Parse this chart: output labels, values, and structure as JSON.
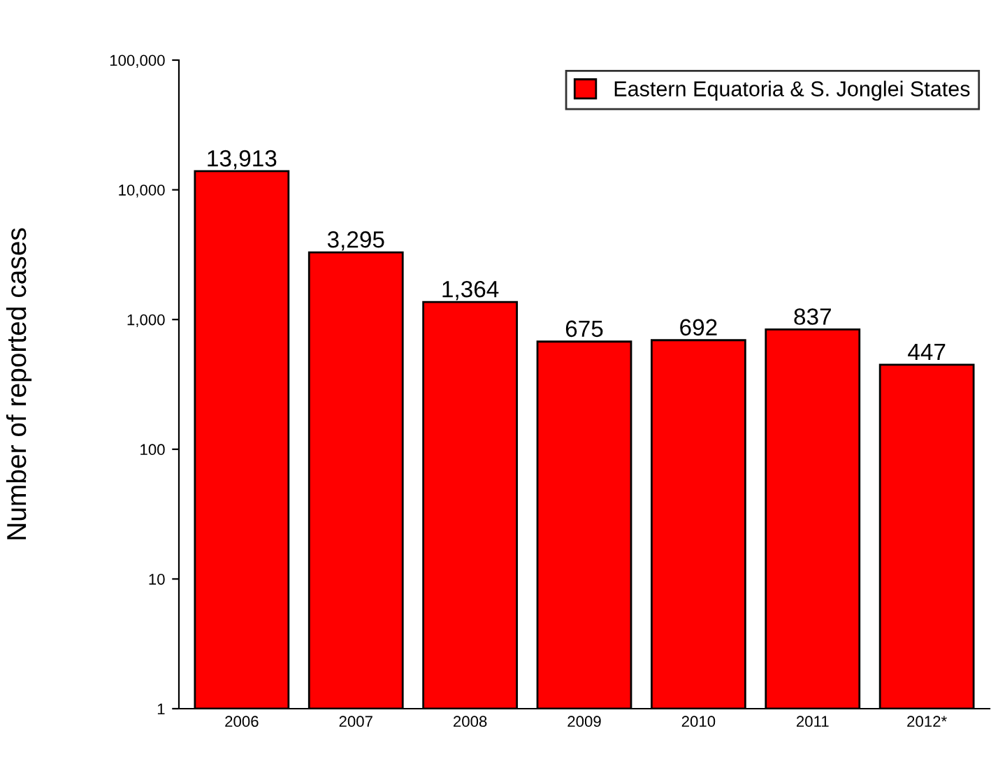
{
  "chart_data": {
    "type": "bar",
    "ylabel": "Number of reported cases",
    "categories": [
      "2006",
      "2007",
      "2008",
      "2009",
      "2010",
      "2011",
      "2012*"
    ],
    "series": [
      {
        "name": "Eastern Equatoria & S. Jonglei States",
        "color": "#ff0000",
        "values": [
          13913,
          3295,
          1364,
          675,
          692,
          837,
          447
        ],
        "value_labels": [
          "13,913",
          "3,295",
          "1,364",
          "675",
          "692",
          "837",
          "447"
        ]
      }
    ],
    "log": "y",
    "ylim": [
      1,
      100000
    ],
    "yticks": [
      1,
      10,
      100,
      {
        "value": 1000,
        "label": "1,000"
      },
      {
        "value": 10000,
        "label": "10,000"
      },
      {
        "value": 100000,
        "label": "100,000"
      }
    ],
    "grid": false,
    "legend": "top right"
  }
}
